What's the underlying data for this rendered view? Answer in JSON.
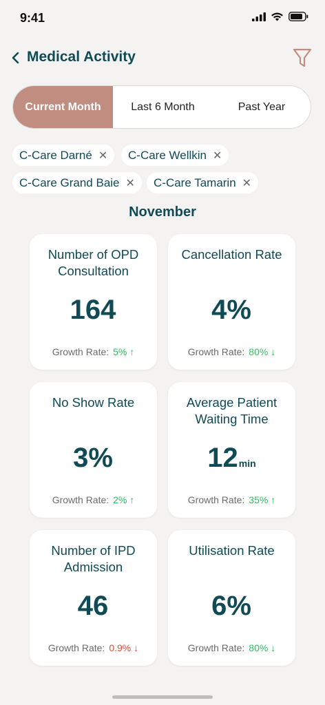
{
  "status_bar": {
    "time": "9:41"
  },
  "header": {
    "title": "Medical Activity"
  },
  "period_tabs": [
    {
      "label": "Current Month",
      "active": true
    },
    {
      "label": "Last 6 Month",
      "active": false
    },
    {
      "label": "Past Year",
      "active": false
    }
  ],
  "filters": [
    {
      "label": "C-Care Darné"
    },
    {
      "label": "C-Care Wellkin"
    },
    {
      "label": "C-Care Grand Baie"
    },
    {
      "label": "C-Care Tamarin"
    }
  ],
  "month": "November",
  "growth_label": "Growth Rate:",
  "colors": {
    "primary": "#0f4a55",
    "accent": "#c08d80",
    "positive": "#2fbf5e",
    "negative": "#e5483b"
  },
  "metrics": [
    {
      "title": "Number of OPD Consultation",
      "value": "164",
      "unit": "",
      "growth": "5%",
      "arrow": "↑"
    },
    {
      "title": "Cancellation Rate",
      "value": "4%",
      "unit": "",
      "growth": "80%",
      "arrow": "↓"
    },
    {
      "title": "No Show Rate",
      "value": "3%",
      "unit": "",
      "growth": "2%",
      "arrow": "↑"
    },
    {
      "title": "Average Patient Waiting Time",
      "value": "12",
      "unit": "min",
      "growth": "35%",
      "arrow": "↑"
    },
    {
      "title": "Number of IPD Admission",
      "value": "46",
      "unit": "",
      "growth": "0.9%",
      "arrow": "↓"
    },
    {
      "title": "Utilisation Rate",
      "value": "6%",
      "unit": "",
      "growth": "80%",
      "arrow": "↓"
    }
  ]
}
